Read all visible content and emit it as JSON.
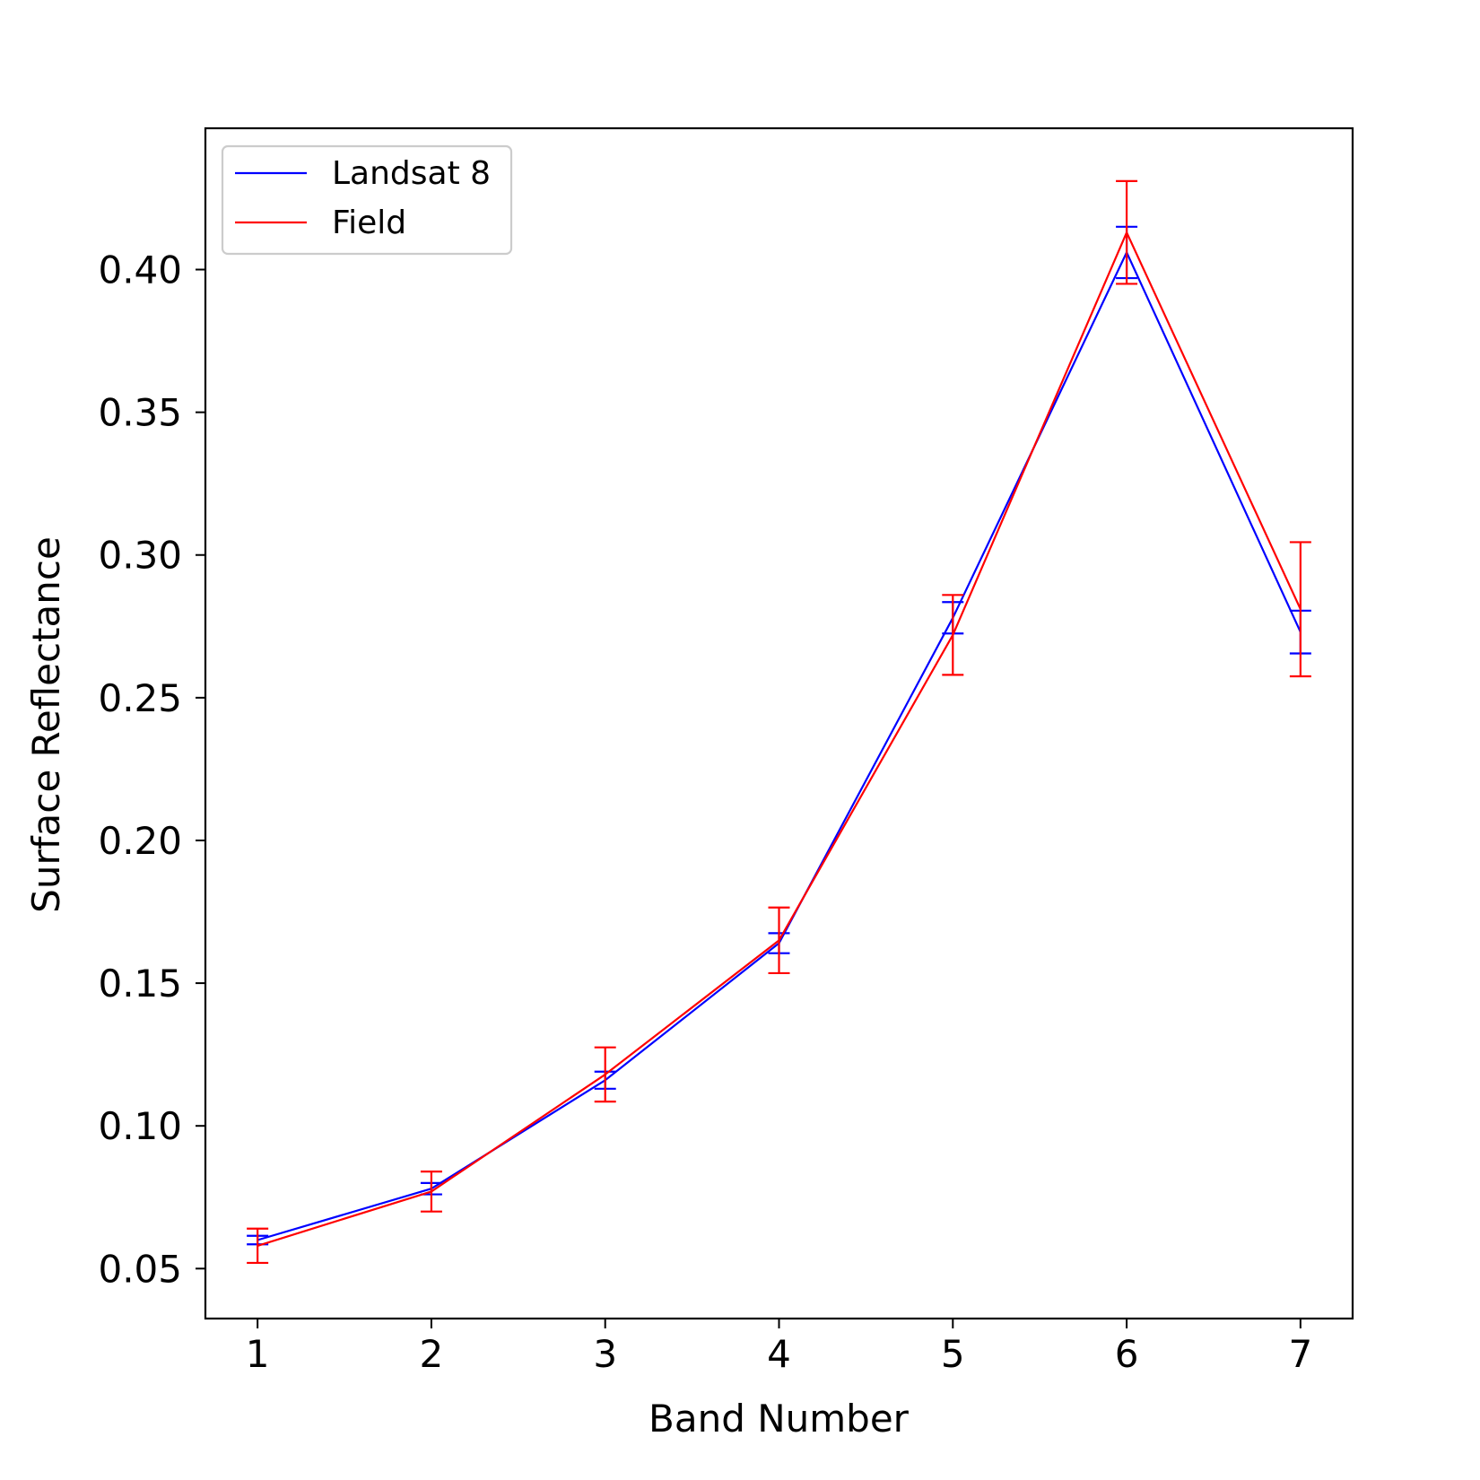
{
  "chart_data": {
    "type": "line",
    "xlabel": "Band Number",
    "ylabel": "Surface Reflectance",
    "x": [
      1,
      2,
      3,
      4,
      5,
      6,
      7
    ],
    "xlim": [
      0.7,
      7.3
    ],
    "ylim": [
      0.0325,
      0.4495
    ],
    "xticks": [
      "1",
      "2",
      "3",
      "4",
      "5",
      "6",
      "7"
    ],
    "yticks": [
      "0.05",
      "0.10",
      "0.15",
      "0.20",
      "0.25",
      "0.30",
      "0.35",
      "0.40"
    ],
    "legend_position": "top-left",
    "grid": false,
    "series": [
      {
        "name": "Landsat 8",
        "color": "#0000ff",
        "values": [
          0.06,
          0.078,
          0.116,
          0.164,
          0.278,
          0.406,
          0.273
        ],
        "errors": [
          0.0015,
          0.002,
          0.003,
          0.0035,
          0.0055,
          0.009,
          0.0075
        ]
      },
      {
        "name": "Field",
        "color": "#ff0000",
        "values": [
          0.058,
          0.077,
          0.118,
          0.165,
          0.272,
          0.413,
          0.281
        ],
        "errors": [
          0.006,
          0.007,
          0.0095,
          0.0115,
          0.014,
          0.018,
          0.0235
        ]
      }
    ]
  }
}
